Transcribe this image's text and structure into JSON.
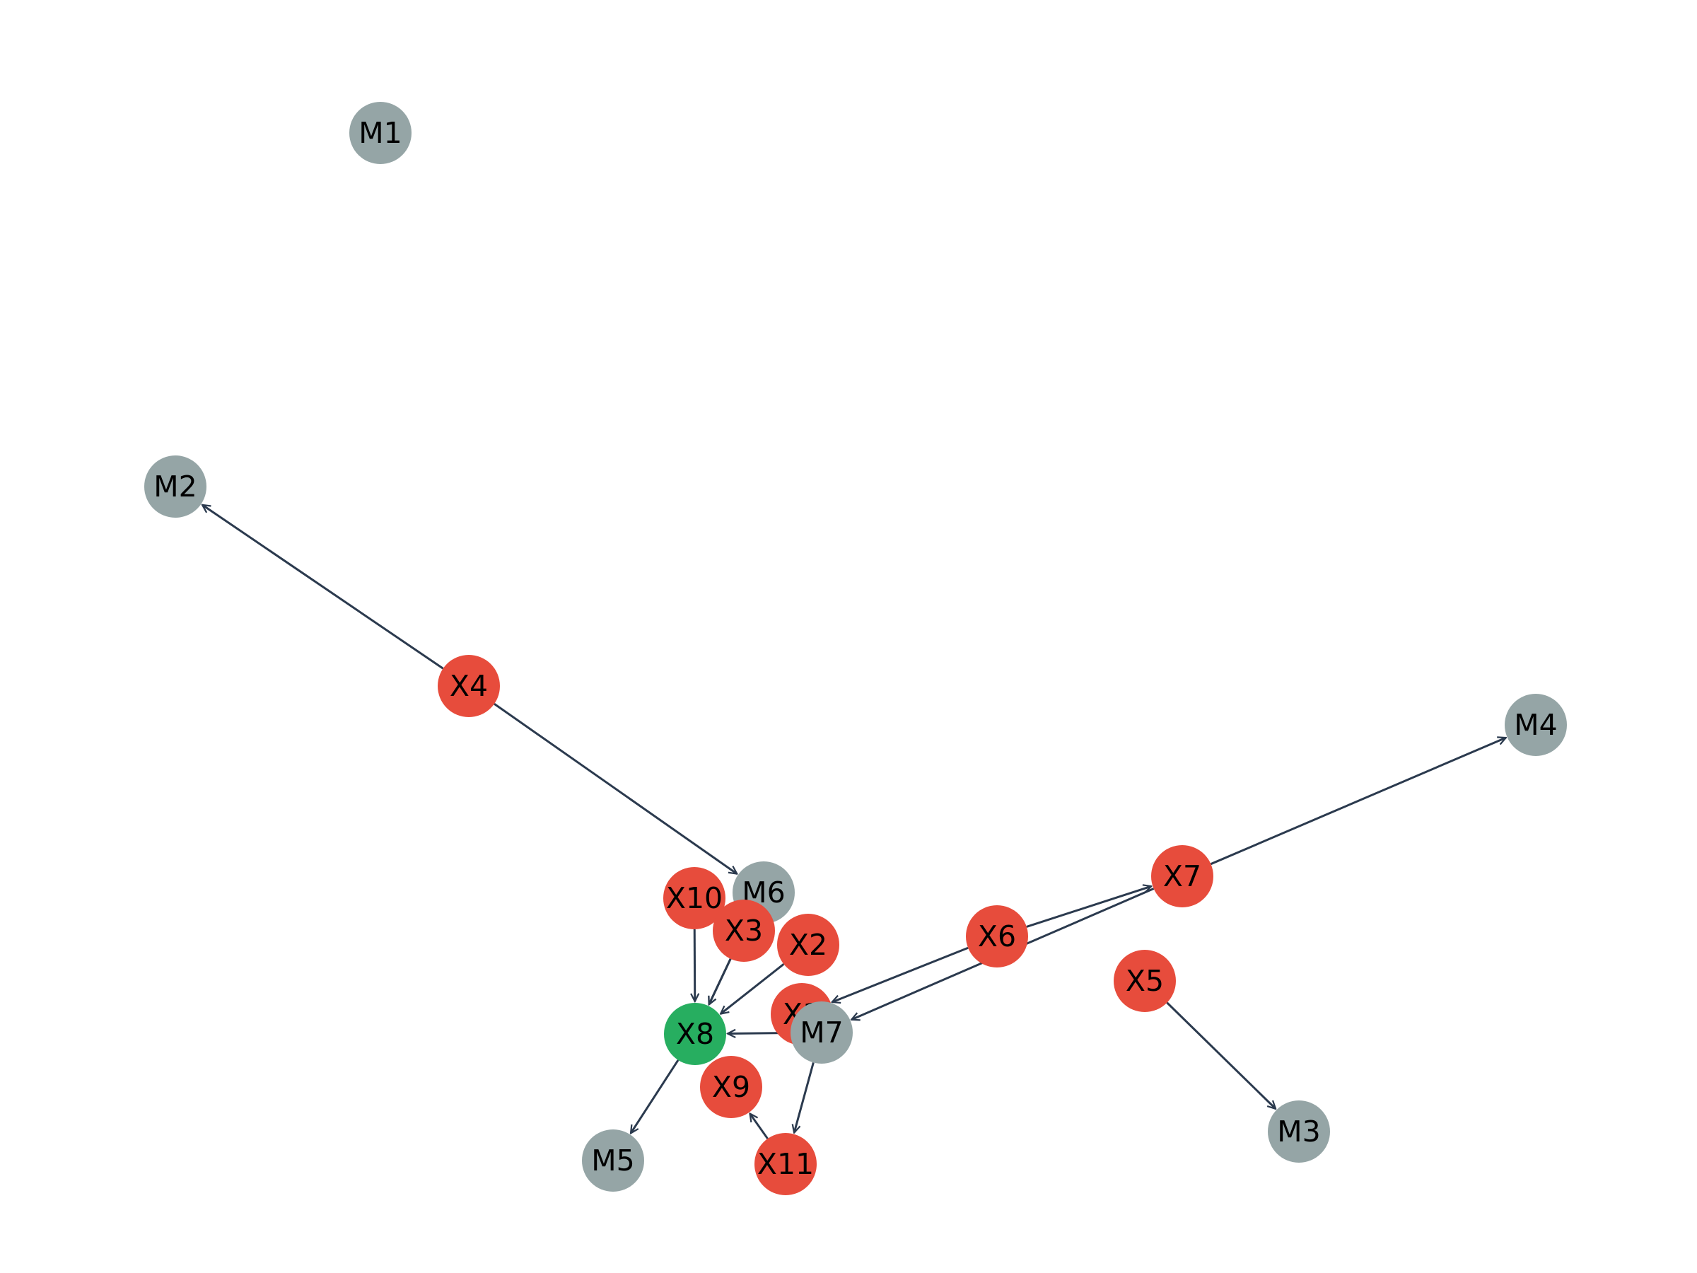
{
  "title": "",
  "colors": {
    "edge": "#2b3a4e",
    "red_node": "#e74c3c",
    "green_node": "#27ae60",
    "gray_node": "#95a5a6",
    "label": "#000000"
  },
  "nodes": [
    {
      "id": "M1",
      "label": "M1",
      "color": "gray_node"
    },
    {
      "id": "M2",
      "label": "M2",
      "color": "gray_node"
    },
    {
      "id": "X4",
      "label": "X4",
      "color": "red_node"
    },
    {
      "id": "M4",
      "label": "M4",
      "color": "gray_node"
    },
    {
      "id": "X7",
      "label": "X7",
      "color": "red_node"
    },
    {
      "id": "X6",
      "label": "X6",
      "color": "red_node"
    },
    {
      "id": "X5",
      "label": "X5",
      "color": "red_node"
    },
    {
      "id": "M3",
      "label": "M3",
      "color": "gray_node"
    },
    {
      "id": "M6",
      "label": "M6",
      "color": "gray_node"
    },
    {
      "id": "X10",
      "label": "X10",
      "color": "red_node"
    },
    {
      "id": "X3",
      "label": "X3",
      "color": "red_node"
    },
    {
      "id": "X2",
      "label": "X2",
      "color": "red_node"
    },
    {
      "id": "X1",
      "label": "X1",
      "color": "red_node"
    },
    {
      "id": "M7",
      "label": "M7",
      "color": "gray_node"
    },
    {
      "id": "X8",
      "label": "X8",
      "color": "green_node"
    },
    {
      "id": "X9",
      "label": "X9",
      "color": "red_node"
    },
    {
      "id": "X11",
      "label": "X11",
      "color": "red_node"
    },
    {
      "id": "M5",
      "label": "M5",
      "color": "gray_node"
    }
  ],
  "edges": [
    {
      "from": "X4",
      "to": "M2"
    },
    {
      "from": "X4",
      "to": "M6"
    },
    {
      "from": "X7",
      "to": "M4"
    },
    {
      "from": "X6",
      "to": "X7"
    },
    {
      "from": "X6",
      "to": "X1"
    },
    {
      "from": "X7",
      "to": "M7"
    },
    {
      "from": "X5",
      "to": "M3"
    },
    {
      "from": "X10",
      "to": "X8"
    },
    {
      "from": "X3",
      "to": "X8"
    },
    {
      "from": "X3",
      "to": "X8"
    },
    {
      "from": "X2",
      "to": "X8"
    },
    {
      "from": "M7",
      "to": "X8"
    },
    {
      "from": "M7",
      "to": "X11"
    },
    {
      "from": "X11",
      "to": "X9"
    },
    {
      "from": "X8",
      "to": "M5"
    }
  ]
}
